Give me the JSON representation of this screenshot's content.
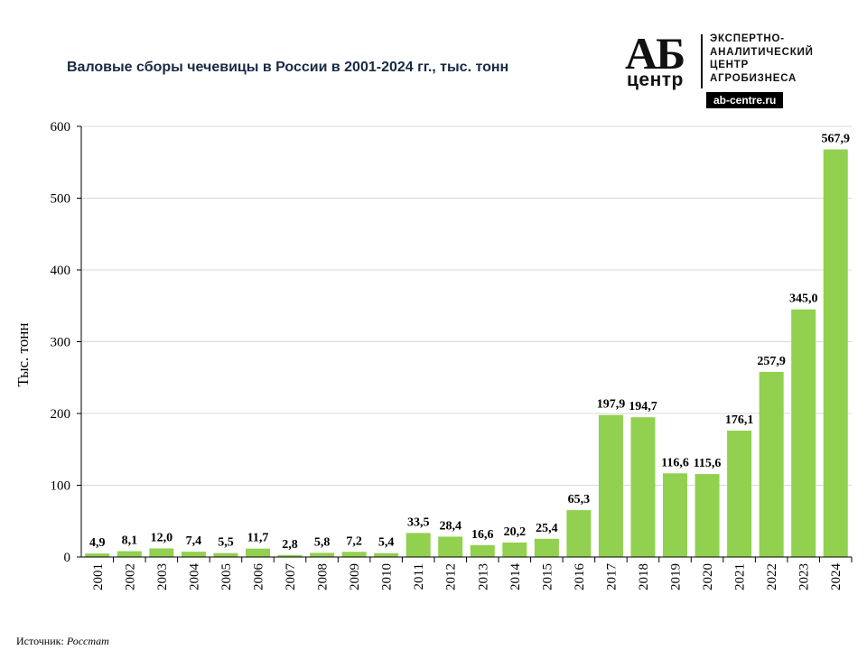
{
  "logo": {
    "mark": "АБ",
    "mark_sub": "центр",
    "org_lines": [
      "ЭКСПЕРТНО-",
      "АНАЛИТИЧЕСКИЙ",
      "ЦЕНТР",
      "АГРОБИЗНЕСА"
    ],
    "url": "ab-centre.ru"
  },
  "source": {
    "label": "Источник:",
    "value": "Росстат"
  },
  "colors": {
    "bar": "#92d050",
    "grid": "#d9d9d9",
    "axis": "#000000"
  },
  "chart_data": {
    "type": "bar",
    "title": "Валовые сборы чечевицы в России в 2001-2024 гг., тыс. тонн",
    "xlabel": "",
    "ylabel": "Тыс. тонн",
    "ylim": [
      0,
      600
    ],
    "yticks": [
      0,
      100,
      200,
      300,
      400,
      500,
      600
    ],
    "grid": true,
    "categories": [
      "2001",
      "2002",
      "2003",
      "2004",
      "2005",
      "2006",
      "2007",
      "2008",
      "2009",
      "2010",
      "2011",
      "2012",
      "2013",
      "2014",
      "2015",
      "2016",
      "2017",
      "2018",
      "2019",
      "2020",
      "2021",
      "2022",
      "2023",
      "2024"
    ],
    "values": [
      4.9,
      8.1,
      12.0,
      7.4,
      5.5,
      11.7,
      2.8,
      5.8,
      7.2,
      5.4,
      33.5,
      28.4,
      16.6,
      20.2,
      25.4,
      65.3,
      197.9,
      194.7,
      116.6,
      115.6,
      176.1,
      257.9,
      345.0,
      567.9
    ],
    "data_labels": [
      "4,9",
      "8,1",
      "12,0",
      "7,4",
      "5,5",
      "11,7",
      "2,8",
      "5,8",
      "7,2",
      "5,4",
      "33,5",
      "28,4",
      "16,6",
      "20,2",
      "25,4",
      "65,3",
      "197,9",
      "194,7",
      "116,6",
      "115,6",
      "176,1",
      "257,9",
      "345,0",
      "567,9"
    ]
  }
}
